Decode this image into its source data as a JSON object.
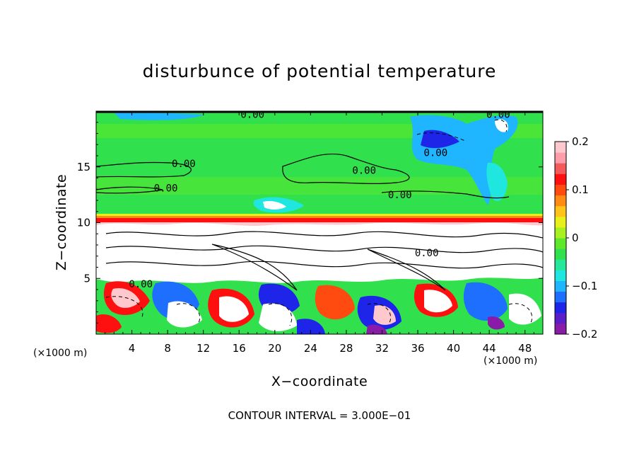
{
  "chart_data": {
    "type": "heatmap",
    "title": "disturbunce of potential temperature",
    "xlabel": "X−coordinate",
    "ylabel": "Z−coordinate",
    "x_unit_left": "(×1000 m)",
    "x_unit_right": "(×1000 m)",
    "xlim": [
      0,
      50
    ],
    "ylim": [
      0,
      20
    ],
    "x_ticks": [
      "4",
      "8",
      "12",
      "16",
      "20",
      "24",
      "28",
      "32",
      "36",
      "40",
      "44",
      "48"
    ],
    "x_tick_values": [
      4,
      8,
      12,
      16,
      20,
      24,
      28,
      32,
      36,
      40,
      44,
      48
    ],
    "y_ticks": [
      "5",
      "10",
      "15"
    ],
    "y_tick_values": [
      5,
      10,
      15
    ],
    "colorbar": {
      "range": [
        -0.2,
        0.2
      ],
      "tick_labels": [
        "0.2",
        "0.1",
        "0",
        "−0.1",
        "−0.2"
      ],
      "tick_values": [
        0.2,
        0.1,
        0,
        -0.1,
        -0.2
      ],
      "colors": [
        "#8a1aa8",
        "#5a1ec8",
        "#1e24e8",
        "#1f6fff",
        "#1fb5ff",
        "#20e6e0",
        "#25e89a",
        "#30e04c",
        "#5ee82a",
        "#a9f020",
        "#e8f01c",
        "#ffc41a",
        "#ff8a14",
        "#ff4a10",
        "#ff1010",
        "#f55a5a",
        "#ff9ea8",
        "#ffc8cc"
      ]
    },
    "contour_labels": [
      {
        "text": "0.00",
        "x": 9.8,
        "z": 15.3
      },
      {
        "text": "0.00",
        "x": 7.8,
        "z": 13.1
      },
      {
        "text": "0.00",
        "x": 17.5,
        "z": 19.7
      },
      {
        "text": "0.00",
        "x": 45.0,
        "z": 19.7
      },
      {
        "text": "0.00",
        "x": 38.0,
        "z": 16.3
      },
      {
        "text": "0.00",
        "x": 30.0,
        "z": 14.7
      },
      {
        "text": "0.00",
        "x": 34.0,
        "z": 12.5
      },
      {
        "text": "0.00",
        "x": 5.0,
        "z": 4.5
      },
      {
        "text": "0.00",
        "x": 37.0,
        "z": 7.3
      }
    ],
    "contour_interval_note": "CONTOUR INTERVAL = 3.000E−01"
  }
}
